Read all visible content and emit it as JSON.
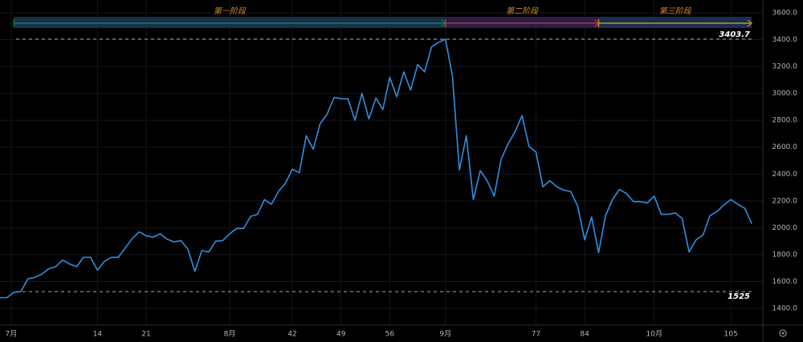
{
  "chart_data": {
    "type": "line",
    "phases": [
      "第一阶段",
      "第二阶段",
      "第三阶段"
    ],
    "x": [
      0,
      1,
      2,
      3,
      4,
      5,
      6,
      7,
      8,
      9,
      10,
      11,
      12,
      13,
      14,
      15,
      16,
      17,
      18,
      19,
      20,
      21,
      22,
      23,
      24,
      25,
      26,
      27,
      28,
      29,
      30,
      31,
      32,
      33,
      34,
      35,
      36,
      37,
      38,
      39,
      40,
      41,
      42,
      43,
      44,
      45,
      46,
      47,
      48,
      49,
      50,
      51,
      52,
      53,
      54,
      55,
      56,
      57,
      58,
      59,
      60,
      61,
      62,
      63,
      64,
      65,
      66,
      67,
      68,
      69,
      70,
      71,
      72,
      73,
      74,
      75,
      76,
      77,
      78,
      79,
      80,
      81,
      82,
      83,
      84,
      85,
      86,
      87,
      88,
      89,
      90,
      91,
      92,
      93,
      94,
      95,
      96,
      97,
      98,
      99,
      100,
      101,
      102,
      103,
      104,
      105,
      106,
      107,
      108
    ],
    "series": [
      {
        "color": "#2f8fdf",
        "values": [
          1480,
          1480,
          1520,
          1525,
          1620,
          1630,
          1655,
          1695,
          1710,
          1760,
          1730,
          1710,
          1780,
          1780,
          1685,
          1750,
          1780,
          1780,
          1850,
          1920,
          1970,
          1940,
          1930,
          1955,
          1915,
          1895,
          1905,
          1840,
          1675,
          1830,
          1820,
          1900,
          1905,
          1955,
          1995,
          1995,
          2085,
          2100,
          2210,
          2175,
          2270,
          2330,
          2435,
          2410,
          2685,
          2585,
          2775,
          2845,
          2970,
          2960,
          2960,
          2800,
          3000,
          2810,
          2965,
          2880,
          3120,
          2975,
          3160,
          3025,
          3215,
          3160,
          3345,
          3380,
          3403.7,
          3130,
          2430,
          2685,
          2210,
          2425,
          2350,
          2235,
          2510,
          2625,
          2715,
          2835,
          2605,
          2565,
          2305,
          2350,
          2305,
          2280,
          2270,
          2160,
          1910,
          2080,
          1815,
          2090,
          2210,
          2285,
          2255,
          2195,
          2195,
          2185,
          2235,
          2100,
          2100,
          2110,
          2070,
          1820,
          1910,
          1945,
          2090,
          2120,
          2170,
          2210,
          2175,
          2145,
          2030
        ]
      }
    ],
    "hlines": [
      3403.7,
      1525
    ],
    "xlim": [
      0,
      109.6
    ],
    "xticks": [
      {
        "value": 1.6,
        "label": "7月"
      },
      14,
      21,
      {
        "value": 33,
        "label": "8月"
      },
      42,
      49,
      56,
      {
        "value": 64,
        "label": "9月"
      },
      77,
      84,
      {
        "value": 94,
        "label": "10月"
      },
      105
    ],
    "ylim": [
      1281,
      3695
    ],
    "yticks": [
      {
        "value": 1400,
        "label": "1400.0"
      },
      {
        "value": 1600,
        "label": "1600.0"
      },
      {
        "value": 1800,
        "label": "1800.0"
      },
      {
        "value": 2000,
        "label": "2000.0"
      },
      {
        "value": 2200,
        "label": "2200.0"
      },
      {
        "value": 2400,
        "label": "2400.0"
      },
      {
        "value": 2600,
        "label": "2600.0"
      },
      {
        "value": 2800,
        "label": "2800.0"
      },
      {
        "value": 3000,
        "label": "3000.0"
      },
      {
        "value": 3200,
        "label": "3200.0"
      },
      {
        "value": 3400,
        "label": "3400.0"
      },
      {
        "value": 3600,
        "label": "3600.0"
      }
    ],
    "grid": true
  }
}
